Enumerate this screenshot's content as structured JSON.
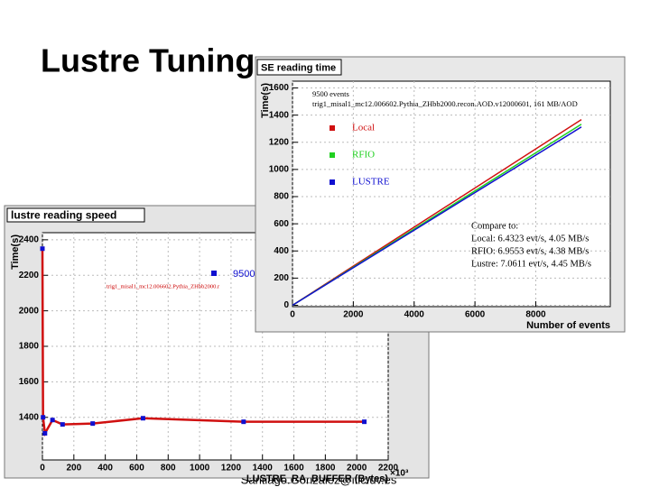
{
  "slide": {
    "title": "Lustre Tuning",
    "footer": "Santiago.Gonzalez@ific.uv.es"
  },
  "chart_data": [
    {
      "type": "line",
      "title": "lustre reading speed",
      "subtitle": "trig1_misal1_mc12.006602.Pythia_ZHbb2000.r",
      "x_label": "LUSTRE_RA_BUFFER (Bytes)",
      "x_multiplier": "×10³",
      "y_label": "Time(s)",
      "x": [
        0,
        4,
        16,
        64,
        128,
        320,
        640,
        1280,
        2048
      ],
      "series": [
        {
          "name": "9500",
          "color": "#d01010",
          "marker_color": "#1010d0",
          "values": [
            2350,
            1400,
            1310,
            1385,
            1360,
            1365,
            1395,
            1375,
            1375
          ]
        }
      ],
      "xlim": [
        0,
        2200
      ],
      "ylim": [
        1160,
        2440
      ],
      "xticks": [
        0,
        200,
        400,
        600,
        800,
        1000,
        1200,
        1400,
        1600,
        1800,
        2000,
        2200
      ],
      "yticks": [
        1400,
        1600,
        1800,
        2000,
        2200,
        2400
      ],
      "grid": true
    },
    {
      "type": "line",
      "title": "SE reading time",
      "subtitle_lines": [
        "9500 events",
        "trig1_misal1_mc12.006602.Pythia_ZHbb2000.recon.AOD.v12000601, 161 MB/AOD"
      ],
      "x_label": "Number of events",
      "y_label": "Time(s)",
      "x": [
        0,
        9500
      ],
      "series": [
        {
          "name": "Local",
          "color": "#d01010",
          "values": [
            0,
            1367
          ]
        },
        {
          "name": "RFIO",
          "color": "#20d020",
          "values": [
            0,
            1333
          ]
        },
        {
          "name": "LUSTRE",
          "color": "#1010d0",
          "values": [
            0,
            1313
          ]
        }
      ],
      "notes": [
        "Compare to:",
        "Local: 6.4323 evt/s,  4.05 MB/s",
        "RFIO: 6.9553 evt/s,  4.38 MB/s",
        "Lustre: 7.0611 evt/s,  4.45 MB/s"
      ],
      "xlim": [
        0,
        10450
      ],
      "ylim": [
        -10,
        1650
      ],
      "xticks": [
        0,
        2000,
        4000,
        6000,
        8000
      ],
      "yticks": [
        0,
        200,
        400,
        600,
        800,
        1000,
        1200,
        1400,
        1600
      ],
      "grid": true
    }
  ]
}
